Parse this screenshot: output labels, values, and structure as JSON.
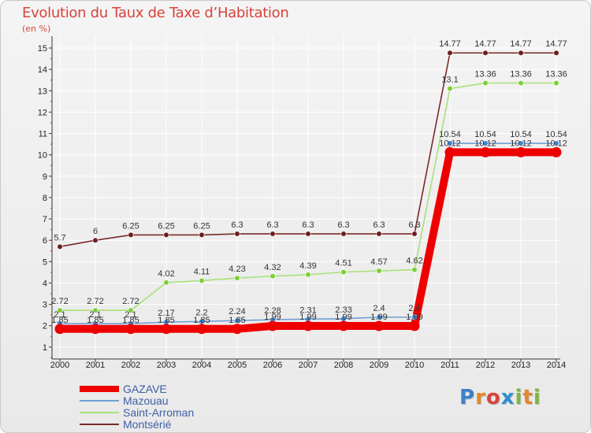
{
  "header": {
    "title": "Evolution du Taux de Taxe d’Habitation",
    "unit": "(en %)"
  },
  "logo": {
    "text": "Proxiti",
    "letter_colors": [
      "#3b7fc7",
      "#e2872a",
      "#d9433b",
      "#2d8ed0",
      "#7bb63c",
      "#e2872a",
      "#7bb63c"
    ]
  },
  "chart_data": {
    "type": "line",
    "title": "Evolution du Taux de Taxe d’Habitation",
    "ylabel": "(en %)",
    "xlabel": "",
    "x": [
      "2000",
      "2001",
      "2002",
      "2003",
      "2004",
      "2005",
      "2006",
      "2007",
      "2008",
      "2009",
      "2010",
      "2011",
      "2012",
      "2013",
      "2014"
    ],
    "ylim": [
      0,
      15
    ],
    "yticks": [
      "1",
      "2",
      "3",
      "4",
      "5",
      "6",
      "7",
      "8",
      "9",
      "10",
      "11",
      "12",
      "13",
      "14",
      "15"
    ],
    "grid": true,
    "legend_position": "bottom-left",
    "series": [
      {
        "name": "GAZAVE",
        "color": "#ee0000",
        "marker": "#ee0000",
        "values": [
          1.85,
          1.85,
          1.85,
          1.85,
          1.85,
          1.85,
          1.99,
          1.99,
          1.99,
          1.99,
          1.99,
          10.12,
          10.12,
          10.12,
          10.12
        ],
        "labels": [
          "1.85",
          "1.85",
          "1.85",
          "1.85",
          "1.85",
          "1.85",
          "1.99",
          "1.99",
          "1.99",
          "1.99",
          "1.99",
          "10.12",
          "10.12",
          "10.12",
          "10.12"
        ]
      },
      {
        "name": "Mazouau",
        "color": "#6f9fd3",
        "marker": "#3a86d6",
        "values": [
          2.1,
          2.1,
          2.1,
          2.17,
          2.2,
          2.24,
          2.28,
          2.31,
          2.33,
          2.4,
          2.4,
          10.54,
          10.54,
          10.54,
          10.54
        ],
        "labels": [
          "2.1",
          "2.1",
          "2.1",
          "2.17",
          "2.2",
          "2.24",
          "2.28",
          "2.31",
          "2.33",
          "2.4",
          "2.4",
          "10.54",
          "10.54",
          "10.54",
          "10.54"
        ]
      },
      {
        "name": "Saint-Arroman",
        "color": "#a9e07a",
        "marker": "#7bcf38",
        "values": [
          2.72,
          2.72,
          2.72,
          4.02,
          4.11,
          4.23,
          4.32,
          4.39,
          4.51,
          4.57,
          4.62,
          13.1,
          13.36,
          13.36,
          13.36
        ],
        "labels": [
          "2.72",
          "2.72",
          "2.72",
          "4.02",
          "4.11",
          "4.23",
          "4.32",
          "4.39",
          "4.51",
          "4.57",
          "4.62",
          "13.1",
          "13.36",
          "13.36",
          "13.36"
        ]
      },
      {
        "name": "Montsérié",
        "color": "#7a2a2a",
        "marker": "#6b1e1e",
        "values": [
          5.7,
          6,
          6.25,
          6.25,
          6.25,
          6.3,
          6.3,
          6.3,
          6.3,
          6.3,
          6.3,
          14.77,
          14.77,
          14.77,
          14.77
        ],
        "labels": [
          "5.7",
          "6",
          "6.25",
          "6.25",
          "6.25",
          "6.3",
          "6.3",
          "6.3",
          "6.3",
          "6.3",
          "6.3",
          "14.77",
          "14.77",
          "14.77",
          "14.77"
        ]
      }
    ]
  }
}
